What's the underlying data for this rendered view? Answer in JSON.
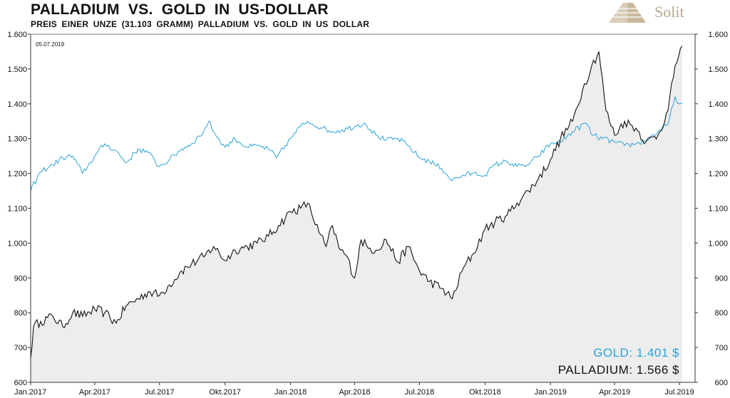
{
  "header": {
    "title": "PALLADIUM VS. GOLD IN US-DOLLAR",
    "subtitle": "PREIS EINER UNZE (31.103 GRAMM) PALLADIUM VS. GOLD IN US DOLLAR",
    "logo_text": "Solit"
  },
  "colors": {
    "gold": "#2aa3d8",
    "palladium": "#111111",
    "palladium_fill": "#ededed",
    "logo": "#b6a78e"
  },
  "chart_data": {
    "type": "line",
    "date_stamp": "05.07.2019",
    "title": "PALLADIUM VS. GOLD IN US-DOLLAR",
    "xlabel": "",
    "ylabel": "",
    "ylim": [
      600,
      1600
    ],
    "y_ticks": [
      "600",
      "700",
      "800",
      "900",
      "1.000",
      "1.100",
      "1.200",
      "1.300",
      "1.400",
      "1.500",
      "1.600"
    ],
    "y_tick_values": [
      600,
      700,
      800,
      900,
      1000,
      1100,
      1200,
      1300,
      1400,
      1500,
      1600
    ],
    "x_range": [
      "2017-01-01",
      "2019-07-05"
    ],
    "x_ticks": [
      {
        "label": "Jan.2017",
        "date": "2017-01-01"
      },
      {
        "label": "Apr.2017",
        "date": "2017-04-01"
      },
      {
        "label": "Jul.2017",
        "date": "2017-07-01"
      },
      {
        "label": "Okt.2017",
        "date": "2017-10-01"
      },
      {
        "label": "Jan.2018",
        "date": "2018-01-01"
      },
      {
        "label": "Apr.2018",
        "date": "2018-04-01"
      },
      {
        "label": "Jul.2018",
        "date": "2018-07-01"
      },
      {
        "label": "Okt.2018",
        "date": "2018-10-01"
      },
      {
        "label": "Jan.2019",
        "date": "2019-01-01"
      },
      {
        "label": "Apr.2019",
        "date": "2019-04-01"
      },
      {
        "label": "Jul.2019",
        "date": "2019-07-01"
      }
    ],
    "legend": [
      {
        "label": "GOLD: 1.401 $",
        "series": "Gold"
      },
      {
        "label": "PALLADIUM: 1.566 $",
        "series": "Palladium"
      }
    ],
    "legend_position": "bottom-right",
    "grid": false,
    "series": [
      {
        "name": "Gold",
        "x": [
          "2017-01-01",
          "2017-01-15",
          "2017-02-01",
          "2017-02-15",
          "2017-03-01",
          "2017-03-15",
          "2017-04-01",
          "2017-04-15",
          "2017-05-01",
          "2017-05-15",
          "2017-06-01",
          "2017-06-15",
          "2017-07-01",
          "2017-07-15",
          "2017-08-01",
          "2017-08-15",
          "2017-09-01",
          "2017-09-08",
          "2017-09-15",
          "2017-10-01",
          "2017-10-15",
          "2017-11-01",
          "2017-11-15",
          "2017-12-01",
          "2017-12-12",
          "2018-01-01",
          "2018-01-15",
          "2018-01-25",
          "2018-02-15",
          "2018-03-01",
          "2018-03-15",
          "2018-04-01",
          "2018-04-15",
          "2018-05-01",
          "2018-05-15",
          "2018-06-01",
          "2018-06-15",
          "2018-07-01",
          "2018-07-15",
          "2018-08-01",
          "2018-08-16",
          "2018-09-01",
          "2018-09-15",
          "2018-10-01",
          "2018-10-15",
          "2018-11-01",
          "2018-11-15",
          "2018-12-01",
          "2018-12-15",
          "2019-01-01",
          "2019-01-15",
          "2019-02-01",
          "2019-02-20",
          "2019-03-01",
          "2019-03-15",
          "2019-04-01",
          "2019-04-15",
          "2019-05-01",
          "2019-05-15",
          "2019-06-01",
          "2019-06-15",
          "2019-06-25",
          "2019-07-01",
          "2019-07-05"
        ],
        "values": [
          1150,
          1205,
          1225,
          1245,
          1250,
          1200,
          1250,
          1285,
          1265,
          1230,
          1270,
          1260,
          1220,
          1240,
          1270,
          1285,
          1320,
          1350,
          1320,
          1275,
          1300,
          1275,
          1280,
          1270,
          1245,
          1300,
          1335,
          1350,
          1330,
          1320,
          1325,
          1335,
          1345,
          1310,
          1295,
          1300,
          1280,
          1245,
          1235,
          1215,
          1180,
          1195,
          1200,
          1195,
          1225,
          1235,
          1220,
          1225,
          1250,
          1285,
          1290,
          1320,
          1345,
          1310,
          1300,
          1290,
          1280,
          1285,
          1295,
          1320,
          1340,
          1420,
          1400,
          1401
        ]
      },
      {
        "name": "Palladium",
        "x": [
          "2017-01-01",
          "2017-01-05",
          "2017-01-15",
          "2017-02-01",
          "2017-02-15",
          "2017-03-01",
          "2017-03-15",
          "2017-04-01",
          "2017-04-15",
          "2017-05-01",
          "2017-05-15",
          "2017-06-01",
          "2017-06-15",
          "2017-07-01",
          "2017-07-15",
          "2017-08-01",
          "2017-08-15",
          "2017-09-01",
          "2017-09-15",
          "2017-10-01",
          "2017-10-15",
          "2017-11-01",
          "2017-11-15",
          "2017-12-01",
          "2017-12-15",
          "2018-01-01",
          "2018-01-15",
          "2018-01-25",
          "2018-02-10",
          "2018-02-20",
          "2018-03-01",
          "2018-03-10",
          "2018-03-20",
          "2018-04-01",
          "2018-04-10",
          "2018-04-20",
          "2018-05-01",
          "2018-05-15",
          "2018-06-01",
          "2018-06-15",
          "2018-07-01",
          "2018-07-15",
          "2018-08-01",
          "2018-08-16",
          "2018-09-01",
          "2018-09-15",
          "2018-10-01",
          "2018-10-15",
          "2018-11-01",
          "2018-11-15",
          "2018-12-01",
          "2018-12-15",
          "2019-01-01",
          "2019-01-15",
          "2019-02-01",
          "2019-02-15",
          "2019-02-28",
          "2019-03-10",
          "2019-03-20",
          "2019-04-01",
          "2019-04-15",
          "2019-05-01",
          "2019-05-15",
          "2019-06-01",
          "2019-06-15",
          "2019-06-25",
          "2019-07-05"
        ],
        "values": [
          670,
          760,
          775,
          790,
          760,
          800,
          790,
          810,
          800,
          770,
          820,
          840,
          860,
          850,
          880,
          920,
          940,
          960,
          990,
          950,
          980,
          990,
          1000,
          1020,
          1050,
          1090,
          1100,
          1115,
          1030,
          990,
          1050,
          985,
          965,
          900,
          1010,
          985,
          980,
          1010,
          945,
          990,
          920,
          890,
          870,
          840,
          930,
          970,
          1040,
          1060,
          1080,
          1115,
          1150,
          1185,
          1240,
          1300,
          1350,
          1440,
          1510,
          1550,
          1380,
          1310,
          1350,
          1330,
          1290,
          1310,
          1380,
          1510,
          1566
        ]
      }
    ]
  }
}
